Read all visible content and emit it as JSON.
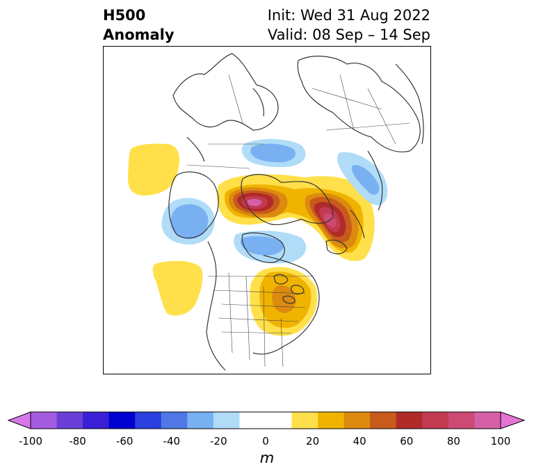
{
  "header": {
    "title_line1": "H500",
    "title_line2": "Anomaly",
    "init_text": "Init: Wed 31 Aug 2022",
    "valid_text": "Valid: 08 Sep – 14 Sep"
  },
  "colorbar": {
    "unit": "m",
    "ticks": [
      "-100",
      "-80",
      "-60",
      "-40",
      "-20",
      "0",
      "20",
      "40",
      "60",
      "80",
      "100"
    ],
    "neg_over_color": "#d877e8",
    "pos_over_color": "#e374d4",
    "colors": [
      "#a35ce0",
      "#6a3fd8",
      "#3a1fd6",
      "#0000d0",
      "#2a3fde",
      "#4f78e6",
      "#78b0f2",
      "#b0dcf8",
      "#ffffff",
      "#ffffff",
      "#ffe04a",
      "#f0b400",
      "#dc8a10",
      "#c85a1c",
      "#b02a2a",
      "#c23a50",
      "#cc4a74",
      "#d660a8"
    ]
  }
}
